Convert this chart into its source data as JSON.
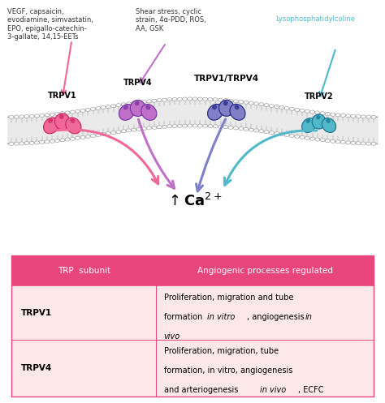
{
  "bg_color": "#ffffff",
  "table_header_color": "#e8457c",
  "table_row1_color": "#fce8e8",
  "table_row2_color": "#fdf4f4",
  "table_border_color": "#e8457c",
  "header_text_color": "#ffffff",
  "col1_header": "TRP  subunit",
  "col2_header": "Angiogenic processes regulated",
  "row1_col1": "TRPV1",
  "row2_col1": "TRPV4",
  "annotations": {
    "top_left": "VEGF, capsaicin,\nevodiamine, simvastatin,\nEPO, epigallo-catechin-\n3-gallate, 14,15-EETs",
    "top_mid": "Shear stress, cyclic\nstrain, 4α-PDD, ROS,\nAA, GSK",
    "top_right": "Lysophosphatidylcoline"
  },
  "colors": {
    "trpv1_main": "#f06898",
    "trpv1_dark": "#cc2060",
    "trpv4_main": "#c070c8",
    "trpv4_dark": "#7030a0",
    "trpv14_light": "#8080c8",
    "trpv14_dark": "#202080",
    "trpv2_main": "#50b8c8",
    "trpv2_dark": "#107090",
    "membrane_fill": "#e8e8e8",
    "membrane_line": "#888888",
    "circle_fill": "#f8f8f8",
    "arrow_pink": "#f06898",
    "arrow_purple": "#c070c8",
    "arrow_blue": "#8080c8",
    "arrow_teal": "#50b8c8"
  }
}
